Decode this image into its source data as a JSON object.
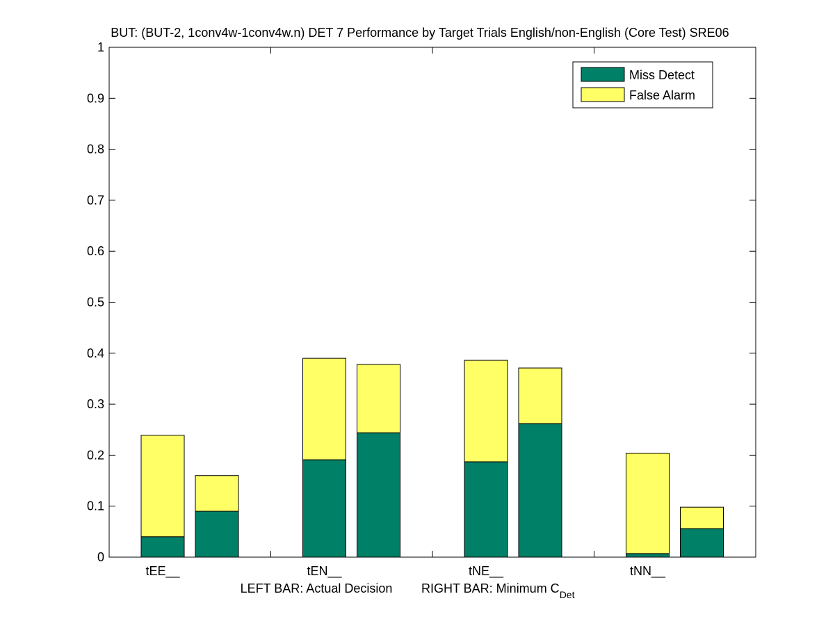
{
  "chart_data": {
    "type": "bar",
    "stacked": true,
    "title": "BUT: (BUT-2, 1conv4w-1conv4w.n) DET 7 Performance by Target Trials English/non-English (Core Test) SRE06",
    "xlabel_left": "LEFT BAR: Actual Decision",
    "xlabel_right_main": "RIGHT BAR: Minimum C",
    "xlabel_right_sub": "Det",
    "categories": [
      "tEE__",
      "tEN__",
      "tNE__",
      "tNN__"
    ],
    "bars_per_category": [
      "Actual Decision",
      "Minimum C_Det"
    ],
    "series": [
      {
        "name": "Miss Detect",
        "color": "#008066",
        "values": [
          [
            0.04,
            0.09
          ],
          [
            0.191,
            0.244
          ],
          [
            0.187,
            0.262
          ],
          [
            0.007,
            0.056
          ]
        ]
      },
      {
        "name": "False Alarm",
        "color": "#ffff66",
        "values": [
          [
            0.199,
            0.07
          ],
          [
            0.199,
            0.134
          ],
          [
            0.199,
            0.109
          ],
          [
            0.197,
            0.042
          ]
        ]
      }
    ],
    "totals": [
      [
        0.239,
        0.16
      ],
      [
        0.39,
        0.378
      ],
      [
        0.386,
        0.371
      ],
      [
        0.204,
        0.098
      ]
    ],
    "ylim": [
      0,
      1
    ],
    "yticks": [
      "0",
      "0.1",
      "0.2",
      "0.3",
      "0.4",
      "0.5",
      "0.6",
      "0.7",
      "0.8",
      "0.9",
      "1"
    ],
    "ytick_values": [
      0,
      0.1,
      0.2,
      0.3,
      0.4,
      0.5,
      0.6,
      0.7,
      0.8,
      0.9,
      1
    ],
    "legend": {
      "position": "top-right",
      "entries": [
        "Miss Detect",
        "False Alarm"
      ]
    },
    "grid": false
  }
}
